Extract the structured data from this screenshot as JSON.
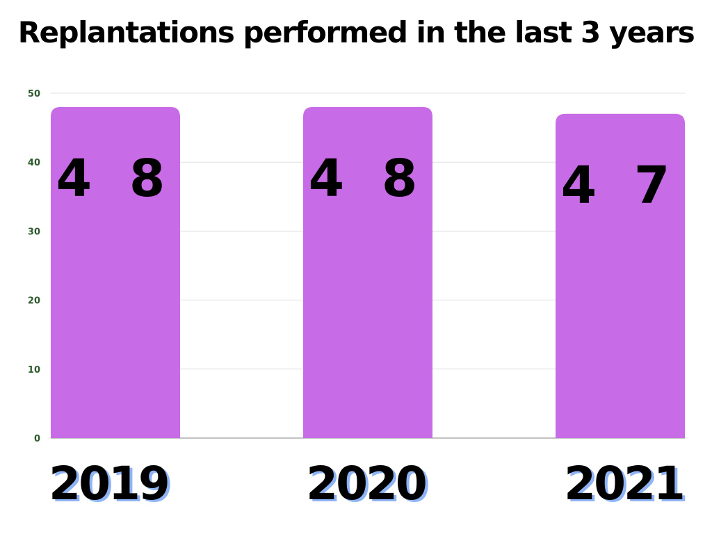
{
  "colors": {
    "bar": "#c86be6",
    "grid": "#e0e0e0",
    "axis": "#9e9e9e",
    "tick_text": "#2e5a2e",
    "category_shadow": "#8fb4f5"
  },
  "chart_data": {
    "type": "bar",
    "title": "Replantations performed in the last 3 years",
    "categories": [
      "2019",
      "2020",
      "2021"
    ],
    "values": [
      48,
      48,
      47
    ],
    "data_labels": [
      "4 8",
      "4 8",
      "4 7"
    ],
    "ylim": [
      0,
      50
    ],
    "yticks": [
      0,
      10,
      20,
      30,
      40,
      50
    ],
    "grid": true,
    "legend": "none"
  }
}
